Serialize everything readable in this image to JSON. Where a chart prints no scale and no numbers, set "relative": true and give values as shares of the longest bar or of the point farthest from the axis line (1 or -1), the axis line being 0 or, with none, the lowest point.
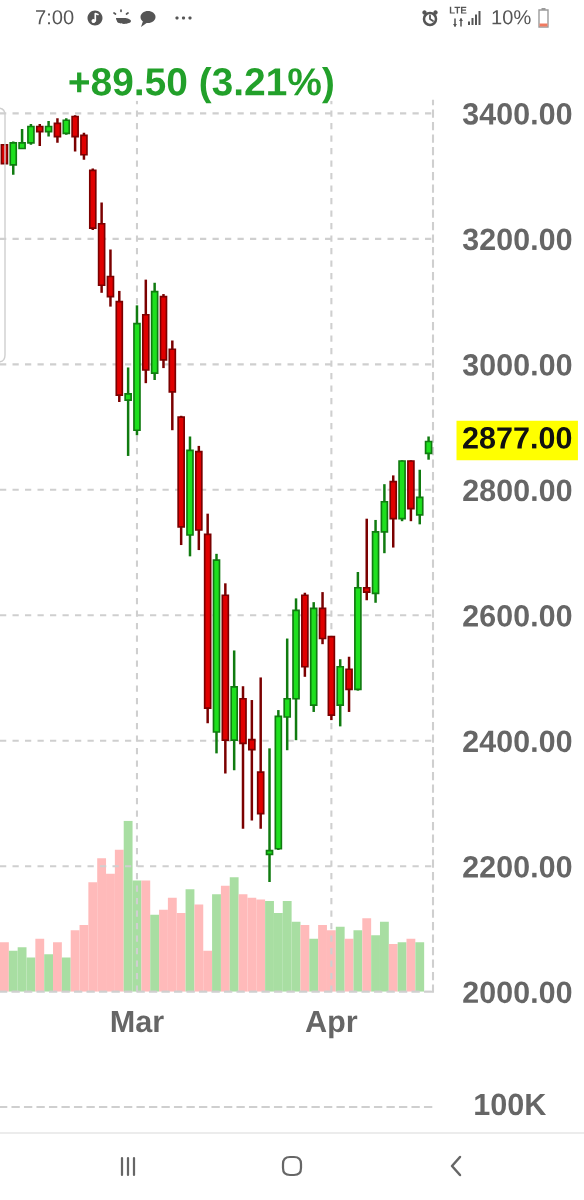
{
  "chart_data": [
    {
      "type": "other",
      "annotations": [
        "7:00",
        "LTE",
        "10%"
      ]
    },
    {
      "type": "candlestick",
      "title": "+89.50 (3.21%)",
      "categories": [
        null,
        null,
        null,
        null,
        null,
        null,
        null,
        null,
        null,
        null,
        null,
        null,
        null,
        null,
        null,
        "Mar",
        null,
        null,
        null,
        null,
        null,
        null,
        null,
        null,
        null,
        null,
        null,
        null,
        null,
        null,
        null,
        null,
        null,
        null,
        null,
        null,
        null,
        "Apr",
        null,
        null,
        null,
        null,
        null,
        null,
        null,
        null,
        null,
        null,
        null
      ],
      "ohlc": [
        [
          3350,
          3350,
          3320,
          3320
        ],
        [
          3318,
          3355,
          3302,
          3353
        ],
        [
          3344,
          3375,
          3343,
          3353
        ],
        [
          3353,
          3383,
          3350,
          3379
        ],
        [
          3379,
          3383,
          3348,
          3371
        ],
        [
          3371,
          3388,
          3363,
          3379
        ],
        [
          3384,
          3392,
          3353,
          3363
        ],
        [
          3368,
          3392,
          3366,
          3389
        ],
        [
          3395,
          3397,
          3339,
          3363
        ],
        [
          3365,
          3369,
          3326,
          3334
        ],
        [
          3309,
          3312,
          3214,
          3217
        ],
        [
          3224,
          3258,
          3114,
          3126
        ],
        [
          3140,
          3183,
          3092,
          3108
        ],
        [
          3100,
          3117,
          2940,
          2951
        ],
        [
          2943,
          2995,
          2854,
          2953
        ],
        [
          2895,
          3094,
          2887,
          3065
        ],
        [
          3079,
          3135,
          2970,
          2991
        ],
        [
          2986,
          3130,
          2975,
          3116
        ],
        [
          3108,
          3112,
          2994,
          3007
        ],
        [
          3024,
          3038,
          2895,
          2956
        ],
        [
          2916,
          2918,
          2712,
          2741
        ],
        [
          2728,
          2885,
          2694,
          2863
        ],
        [
          2861,
          2870,
          2704,
          2736
        ],
        [
          2729,
          2762,
          2428,
          2452
        ],
        [
          2414,
          2698,
          2380,
          2688
        ],
        [
          2632,
          2651,
          2348,
          2401
        ],
        [
          2401,
          2544,
          2353,
          2486
        ],
        [
          2467,
          2487,
          2260,
          2396
        ],
        [
          2402,
          2465,
          2273,
          2386
        ],
        [
          2350,
          2501,
          2260,
          2284
        ],
        [
          2219,
          2388,
          2175,
          2225
        ],
        [
          2228,
          2449,
          2226,
          2439
        ],
        [
          2438,
          2563,
          2385,
          2467
        ],
        [
          2467,
          2627,
          2401,
          2608
        ],
        [
          2632,
          2636,
          2502,
          2518
        ],
        [
          2457,
          2621,
          2446,
          2611
        ],
        [
          2611,
          2637,
          2554,
          2563
        ],
        [
          2566,
          2566,
          2433,
          2441
        ],
        [
          2457,
          2530,
          2423,
          2518
        ],
        [
          2514,
          2534,
          2446,
          2482
        ],
        [
          2482,
          2669,
          2480,
          2644
        ],
        [
          2644,
          2754,
          2624,
          2637
        ],
        [
          2635,
          2752,
          2620,
          2733
        ],
        [
          2733,
          2809,
          2699,
          2781
        ],
        [
          2813,
          2823,
          2708,
          2754
        ],
        [
          2754,
          2847,
          2750,
          2846
        ],
        [
          2846,
          2847,
          2750,
          2770
        ],
        [
          2760,
          2832,
          2745,
          2788
        ],
        [
          2858,
          2885,
          2848,
          2877
        ]
      ],
      "colors": [
        "#e00000",
        "#1ee01e",
        "#1ee01e",
        "#1ee01e",
        "#e00000",
        "#1ee01e",
        "#e00000",
        "#1ee01e",
        "#e00000",
        "#e00000",
        "#e00000",
        "#e00000",
        "#e00000",
        "#e00000",
        "#1ee01e",
        "#1ee01e",
        "#e00000",
        "#1ee01e",
        "#e00000",
        "#e00000",
        "#e00000",
        "#1ee01e",
        "#e00000",
        "#e00000",
        "#1ee01e",
        "#e00000",
        "#1ee01e",
        "#e00000",
        "#e00000",
        "#e00000",
        "#1ee01e",
        "#1ee01e",
        "#1ee01e",
        "#1ee01e",
        "#e00000",
        "#1ee01e",
        "#e00000",
        "#e00000",
        "#1ee01e",
        "#e00000",
        "#1ee01e",
        "#e00000",
        "#1ee01e",
        "#1ee01e",
        "#e00000",
        "#1ee01e",
        "#e00000",
        "#1ee01e",
        "#1ee01e"
      ],
      "ylim": [
        2000,
        3420
      ],
      "yticks": [
        {
          "value": 2000,
          "label": "2000.00"
        },
        {
          "value": 2200,
          "label": "2200.00"
        },
        {
          "value": 2400,
          "label": "2400.00"
        },
        {
          "value": 2600,
          "label": "2600.00"
        },
        {
          "value": 2800,
          "label": "2800.00"
        },
        {
          "value": 3000,
          "label": "3000.00"
        },
        {
          "value": 3200,
          "label": "3200.00"
        },
        {
          "value": 3400,
          "label": "3400.00"
        }
      ],
      "grid": true,
      "annotations": [
        "2877.00",
        "100K"
      ]
    },
    {
      "type": "bar",
      "relative": true,
      "categories": [
        null,
        null,
        null,
        null,
        null,
        null,
        null,
        null,
        null,
        null,
        null,
        null,
        null,
        null,
        null,
        null,
        null,
        null,
        null,
        null,
        null,
        null,
        null,
        null,
        null,
        null,
        null,
        null,
        null,
        null,
        null,
        null,
        null,
        null,
        null,
        null,
        null,
        null,
        null,
        null,
        null,
        null,
        null,
        null,
        null,
        null,
        null,
        null,
        null
      ],
      "values": [
        0.29,
        0.24,
        0.26,
        0.2,
        0.31,
        0.22,
        0.29,
        0.2,
        0.36,
        0.39,
        0.64,
        0.78,
        0.69,
        0.83,
        1.0,
        0.65,
        0.65,
        0.45,
        0.48,
        0.55,
        0.46,
        0.6,
        0.51,
        0.24,
        0.57,
        0.62,
        0.67,
        0.57,
        0.55,
        0.54,
        0.53,
        0.46,
        0.53,
        0.41,
        0.39,
        0.31,
        0.39,
        0.36,
        0.38,
        0.31,
        0.36,
        0.43,
        0.33,
        0.41,
        0.28,
        0.29,
        0.31,
        0.29,
        null
      ],
      "colors": [
        "#ffbaba",
        "#a8dea2",
        "#a8dea2",
        "#a8dea2",
        "#ffbaba",
        "#a8dea2",
        "#ffbaba",
        "#a8dea2",
        "#ffbaba",
        "#ffbaba",
        "#ffbaba",
        "#ffbaba",
        "#ffbaba",
        "#ffbaba",
        "#a8dea2",
        "#a8dea2",
        "#ffbaba",
        "#a8dea2",
        "#ffbaba",
        "#ffbaba",
        "#ffbaba",
        "#a8dea2",
        "#ffbaba",
        "#ffbaba",
        "#a8dea2",
        "#ffbaba",
        "#a8dea2",
        "#ffbaba",
        "#ffbaba",
        "#ffbaba",
        "#a8dea2",
        "#a8dea2",
        "#a8dea2",
        "#a8dea2",
        "#ffbaba",
        "#a8dea2",
        "#ffbaba",
        "#ffbaba",
        "#a8dea2",
        "#ffbaba",
        "#a8dea2",
        "#ffbaba",
        "#a8dea2",
        "#a8dea2",
        "#ffbaba",
        "#a8dea2",
        "#ffbaba",
        "#a8dea2",
        "#a8dea2"
      ]
    }
  ]
}
